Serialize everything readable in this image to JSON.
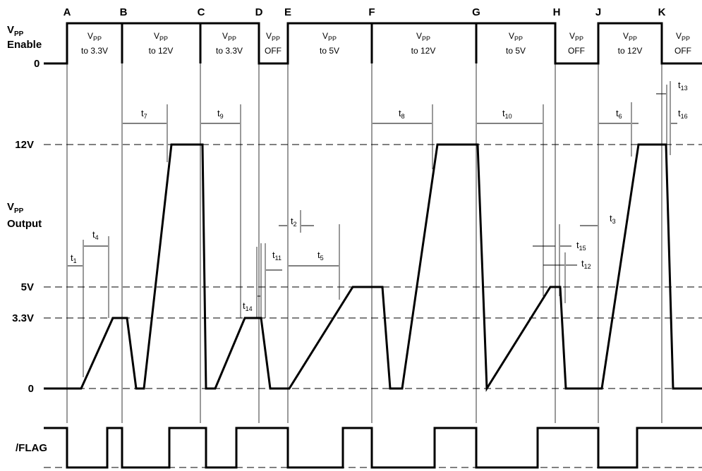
{
  "markers": [
    "A",
    "B",
    "C",
    "D",
    "E",
    "F",
    "G",
    "H",
    "J",
    "K"
  ],
  "vpp_enable": {
    "label_main": "V",
    "label_sub": "PP",
    "label_line2": "Enable",
    "zero": "0",
    "segments": [
      {
        "main": "V",
        "sub": "PP",
        "line2": "to 3.3V"
      },
      {
        "main": "V",
        "sub": "PP",
        "line2": "to 12V"
      },
      {
        "main": "V",
        "sub": "PP",
        "line2": "to 3.3V"
      },
      {
        "main": "V",
        "sub": "PP",
        "line2": "OFF"
      },
      {
        "main": "V",
        "sub": "PP",
        "line2": "to 5V"
      },
      {
        "main": "V",
        "sub": "PP",
        "line2": "to 12V"
      },
      {
        "main": "V",
        "sub": "PP",
        "line2": "to 5V"
      },
      {
        "main": "V",
        "sub": "PP",
        "line2": "OFF"
      },
      {
        "main": "V",
        "sub": "PP",
        "line2": "to 12V"
      },
      {
        "main": "V",
        "sub": "PP",
        "line2": "OFF"
      }
    ]
  },
  "vpp_output": {
    "label_main": "V",
    "label_sub": "PP",
    "label_line2": "Output",
    "levels": [
      "12V",
      "5V",
      "3.3V",
      "0"
    ]
  },
  "flag": {
    "label": "/FLAG"
  },
  "timings": [
    {
      "t": "t",
      "sub": "1"
    },
    {
      "t": "t",
      "sub": "4"
    },
    {
      "t": "t",
      "sub": "7"
    },
    {
      "t": "t",
      "sub": "9"
    },
    {
      "t": "t",
      "sub": "14"
    },
    {
      "t": "t",
      "sub": "11"
    },
    {
      "t": "t",
      "sub": "2"
    },
    {
      "t": "t",
      "sub": "5"
    },
    {
      "t": "t",
      "sub": "8"
    },
    {
      "t": "t",
      "sub": "10"
    },
    {
      "t": "t",
      "sub": "15"
    },
    {
      "t": "t",
      "sub": "12"
    },
    {
      "t": "t",
      "sub": "3"
    },
    {
      "t": "t",
      "sub": "6"
    },
    {
      "t": "t",
      "sub": "13"
    },
    {
      "t": "t",
      "sub": "16"
    }
  ]
}
